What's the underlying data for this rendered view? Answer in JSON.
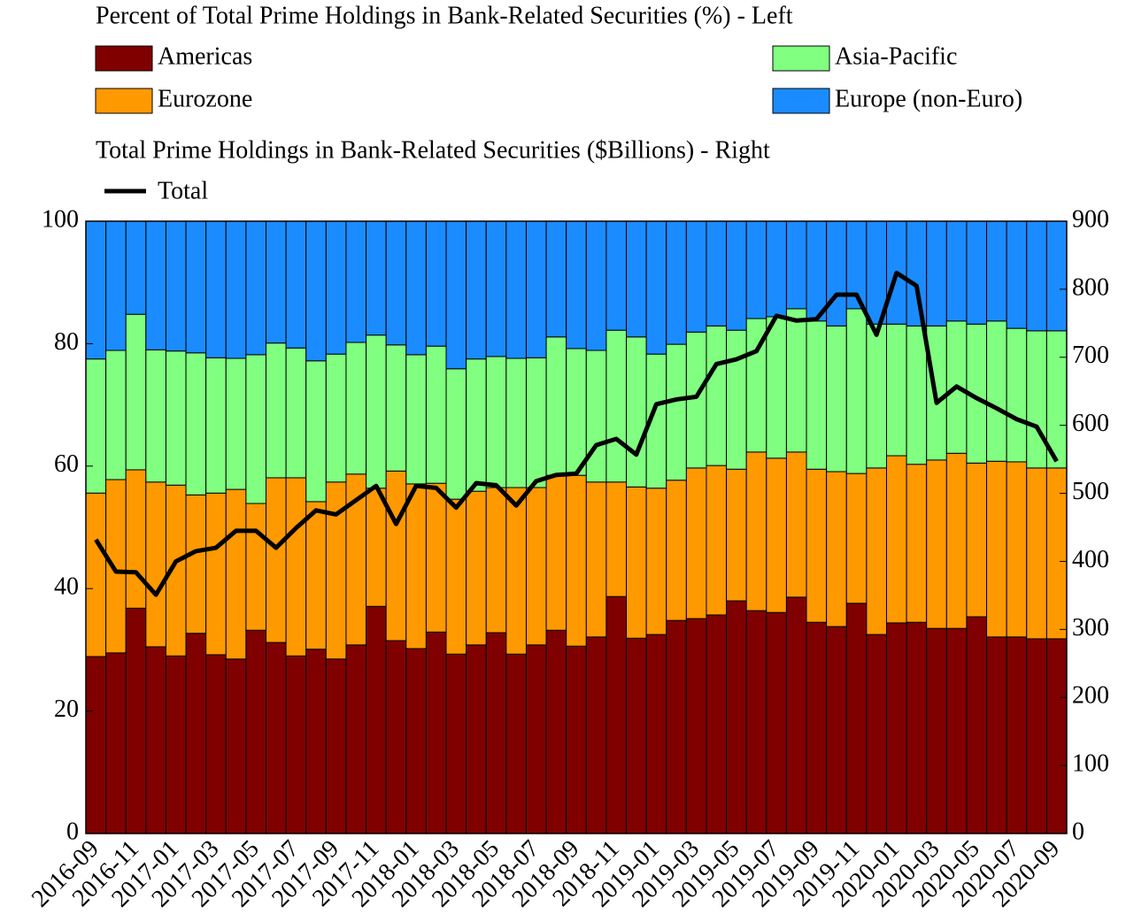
{
  "chart_data": {
    "type": "stacked-bar-line",
    "left_axis_title": "Percent of Total Prime Holdings in Bank-Related Securities (%) - Left",
    "right_axis_title": "Total Prime Holdings in Bank-Related Securities ($Billions) - Right",
    "categories": [
      "2016-09",
      null,
      "2016-11",
      null,
      "2017-01",
      null,
      "2017-03",
      null,
      "2017-05",
      null,
      "2017-07",
      null,
      "2017-09",
      null,
      "2017-11",
      null,
      "2018-01",
      null,
      "2018-03",
      null,
      "2018-05",
      null,
      "2018-07",
      null,
      "2018-09",
      null,
      "2018-11",
      null,
      "2019-01",
      null,
      "2019-03",
      null,
      "2019-05",
      null,
      "2019-07",
      null,
      "2019-09",
      null,
      "2019-11",
      null,
      "2020-01",
      null,
      "2020-03",
      null,
      "2020-05",
      null,
      "2020-07",
      null,
      "2020-09"
    ],
    "series": [
      {
        "name": "Americas",
        "color": "#800000",
        "values": [
          28.9,
          29.5,
          36.8,
          30.5,
          29.0,
          32.7,
          29.2,
          28.5,
          33.2,
          31.2,
          29.0,
          30.1,
          28.5,
          30.8,
          37.1,
          31.5,
          30.2,
          32.9,
          29.3,
          30.8,
          32.8,
          29.3,
          30.8,
          33.2,
          30.6,
          32.1,
          38.7,
          31.9,
          32.5,
          34.8,
          35.1,
          35.7,
          38.0,
          36.4,
          36.1,
          38.6,
          34.5,
          33.8,
          37.6,
          32.5,
          34.4,
          34.5,
          33.5,
          33.5,
          35.4,
          32.1,
          32.1,
          31.8,
          31.8
        ]
      },
      {
        "name": "Eurozone",
        "color": "#ff9900",
        "values": [
          26.7,
          28.3,
          22.6,
          26.9,
          27.9,
          22.6,
          26.4,
          27.7,
          20.7,
          26.9,
          29.1,
          24.1,
          28.9,
          27.9,
          19.3,
          27.7,
          26.9,
          24.3,
          25.3,
          25.1,
          23.7,
          27.2,
          25.7,
          25.3,
          27.9,
          25.3,
          18.7,
          24.7,
          23.9,
          22.9,
          24.6,
          24.4,
          21.5,
          25.9,
          25.2,
          23.7,
          25.0,
          25.3,
          21.2,
          27.2,
          27.3,
          25.8,
          27.5,
          28.6,
          25.1,
          28.7,
          28.6,
          27.9,
          27.9
        ]
      },
      {
        "name": "Asia-Pacific",
        "color": "#80ff80",
        "values": [
          21.9,
          21.1,
          25.4,
          21.6,
          21.9,
          23.2,
          22.1,
          21.4,
          24.3,
          22.0,
          21.2,
          23.0,
          20.9,
          21.5,
          25.0,
          20.6,
          21.1,
          22.4,
          21.3,
          21.6,
          21.4,
          21.1,
          21.2,
          22.6,
          20.7,
          21.5,
          24.8,
          24.5,
          21.9,
          22.2,
          22.2,
          22.8,
          22.7,
          21.8,
          23.1,
          23.4,
          24.2,
          23.8,
          26.9,
          23.5,
          21.5,
          22.6,
          21.9,
          21.6,
          22.7,
          22.9,
          21.8,
          22.4,
          22.4
        ]
      },
      {
        "name": "Europe (non-Euro)",
        "color": "#1a8cff",
        "values": [
          22.5,
          21.1,
          15.2,
          21.0,
          21.2,
          21.5,
          22.3,
          22.4,
          21.8,
          19.9,
          20.7,
          22.8,
          21.7,
          19.8,
          18.6,
          20.2,
          21.8,
          20.4,
          24.1,
          22.5,
          22.1,
          22.4,
          22.3,
          18.9,
          20.8,
          21.1,
          17.8,
          18.9,
          21.7,
          20.1,
          18.1,
          17.1,
          17.8,
          15.9,
          15.6,
          14.3,
          16.3,
          17.1,
          14.3,
          16.8,
          16.8,
          17.1,
          17.1,
          16.3,
          16.8,
          16.3,
          17.5,
          17.9,
          17.9
        ]
      },
      {
        "name": "Total",
        "color": "#000000",
        "axis": "y2",
        "values": [
          432,
          385,
          384,
          351,
          400,
          415,
          420,
          445,
          445,
          420,
          449,
          475,
          469,
          490,
          511,
          455,
          511,
          508,
          479,
          515,
          512,
          482,
          518,
          527,
          529,
          571,
          580,
          557,
          631,
          638,
          642,
          690,
          697,
          709,
          761,
          754,
          756,
          792,
          792,
          733,
          824,
          805,
          633,
          657,
          640,
          625,
          609,
          598,
          547
        ]
      }
    ],
    "ylim": [
      0,
      100
    ],
    "yticks": [
      0,
      20,
      40,
      60,
      80,
      100
    ],
    "y2lim": [
      0,
      900
    ],
    "y2ticks": [
      0,
      100,
      200,
      300,
      400,
      500,
      600,
      700,
      800,
      900
    ]
  }
}
